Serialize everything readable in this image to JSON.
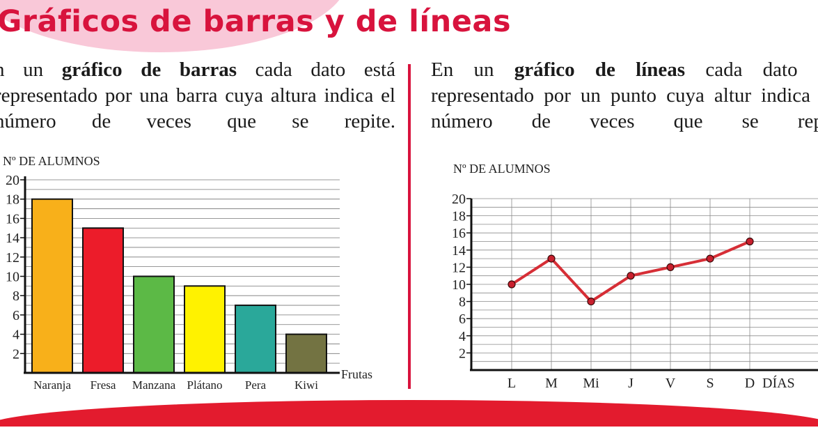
{
  "page": {
    "title": "Gráficos de barras y de líneas",
    "left_text": {
      "pre": "n un ",
      "bold": "gráfico de barras",
      "post": " cada dato está representado por una barra cuya altura indica el número de veces que se repite."
    },
    "right_text": {
      "pre": "En un ",
      "bold": "gráfico de líneas",
      "post": " cada dato es representado por un punto cuya altur indica el número de veces que se repit"
    }
  },
  "colors": {
    "title": "#d8133d",
    "title_bubble": "#f9c8d8",
    "divider": "#d8133d",
    "bottom_band": "#e31b2e",
    "line": "#d62e36",
    "points": "#c8202e"
  },
  "chart_data": [
    {
      "type": "bar",
      "ylabel": "Nº DE ALUMNOS",
      "xlabel": "Frutas",
      "categories": [
        "Naranja",
        "Fresa",
        "Manzana",
        "Plátano",
        "Pera",
        "Kiwi"
      ],
      "values": [
        18,
        15,
        10,
        9,
        7,
        4
      ],
      "bar_colors": [
        "#f8b01a",
        "#ec1c2a",
        "#5cb946",
        "#fff200",
        "#2aa89a",
        "#737342"
      ],
      "ylim": [
        0,
        20
      ],
      "yticks": [
        2,
        4,
        6,
        8,
        10,
        12,
        14,
        16,
        18,
        20
      ],
      "grid": "horizontal"
    },
    {
      "type": "line",
      "ylabel": "Nº DE ALUMNOS",
      "xlabel": "DÍAS",
      "categories": [
        "L",
        "M",
        "Mi",
        "J",
        "V",
        "S",
        "D"
      ],
      "values": [
        10,
        13,
        8,
        11,
        12,
        13,
        15
      ],
      "ylim": [
        0,
        20
      ],
      "yticks": [
        2,
        4,
        6,
        8,
        10,
        12,
        14,
        16,
        18,
        20
      ],
      "grid": "both"
    }
  ]
}
